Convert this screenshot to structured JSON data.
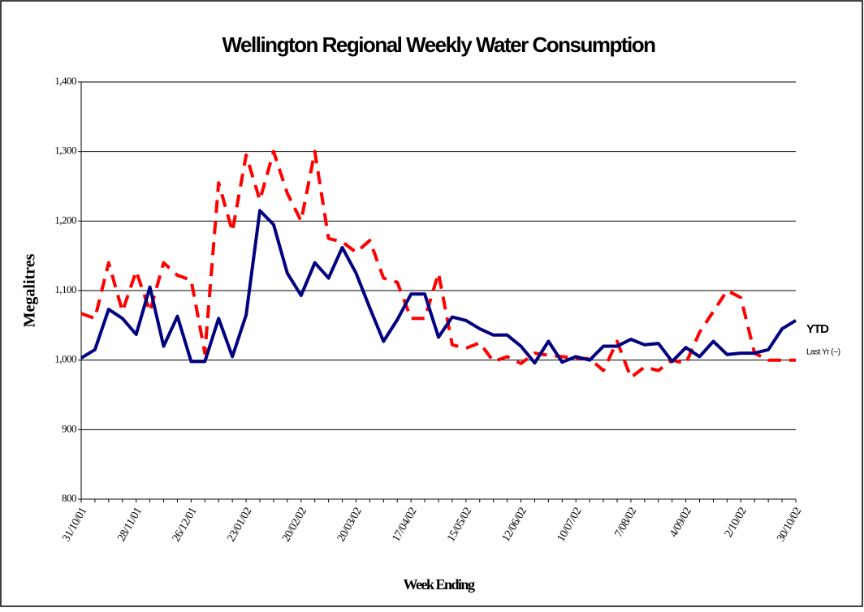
{
  "chart_data": {
    "type": "line",
    "title": "Wellington Regional Weekly Water Consumption",
    "x_label": "Week Ending",
    "y_label": "Megalitres",
    "categories": [
      "31/10/01",
      null,
      null,
      null,
      "28/11/01",
      null,
      null,
      null,
      "26/12/01",
      null,
      null,
      null,
      "23/01/02",
      null,
      null,
      null,
      "20/02/02",
      null,
      null,
      null,
      "20/03/02",
      null,
      null,
      null,
      "17/04/02",
      null,
      null,
      null,
      "15/05/02",
      null,
      null,
      null,
      "12/06/02",
      null,
      null,
      null,
      "10/07/02",
      null,
      null,
      null,
      "7/08/02",
      null,
      null,
      null,
      "4/09/02",
      null,
      null,
      null,
      "2/10/02",
      null,
      null,
      null,
      "30/10/02"
    ],
    "series": [
      {
        "name": "YTD",
        "color": "#000080",
        "dashed": false,
        "values": [
          1003,
          1015,
          1073,
          1060,
          1037,
          1105,
          1020,
          1063,
          998,
          998,
          1060,
          1005,
          1065,
          1215,
          1195,
          1125,
          1093,
          1140,
          1118,
          1162,
          1125,
          1075,
          1027,
          1058,
          1095,
          1095,
          1033,
          1062,
          1057,
          1045,
          1036,
          1036,
          1020,
          996,
          1027,
          997,
          1005,
          1000,
          1020,
          1020,
          1030,
          1022,
          1024,
          998,
          1018,
          1005,
          1027,
          1008,
          1010,
          1010,
          1015,
          1045,
          1057
        ]
      },
      {
        "name": "Last Yr (--)",
        "color": "#ff0000",
        "dashed": true,
        "values": [
          1067,
          1060,
          1140,
          1070,
          1128,
          1070,
          1140,
          1122,
          1115,
          1010,
          1255,
          1185,
          1295,
          1230,
          1300,
          1240,
          1200,
          1300,
          1175,
          1170,
          1155,
          1172,
          1118,
          1112,
          1060,
          1060,
          1125,
          1022,
          1017,
          1025,
          998,
          1005,
          995,
          1010,
          1007,
          1005,
          1003,
          1002,
          985,
          1027,
          975,
          990,
          985,
          1000,
          995,
          1040,
          1070,
          1100,
          1090,
          1010,
          1000,
          1000,
          1000
        ]
      }
    ],
    "ylim": [
      800,
      1400
    ],
    "yticks": [
      {
        "value": 800,
        "label": "800"
      },
      {
        "value": 900,
        "label": "900"
      },
      {
        "value": 1000,
        "label": "1,000"
      },
      {
        "value": 1100,
        "label": "1,100"
      },
      {
        "value": 1200,
        "label": "1,200"
      },
      {
        "value": 1300,
        "label": "1,300"
      },
      {
        "value": 1400,
        "label": "1,400"
      }
    ],
    "grid": true
  }
}
